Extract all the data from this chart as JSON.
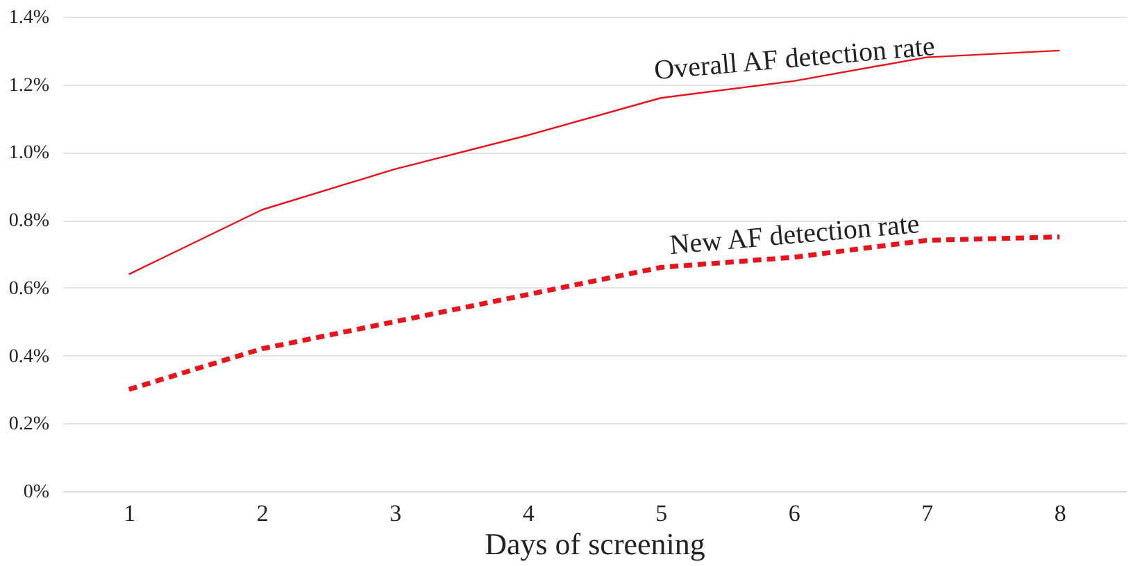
{
  "chart_data": {
    "type": "line",
    "xlabel": "Days of screening",
    "categories": [
      "1",
      "2",
      "3",
      "4",
      "5",
      "6",
      "7",
      "8"
    ],
    "series": [
      {
        "name": "Overall AF detection rate",
        "color": "#e8141c",
        "line_style": "solid",
        "values": [
          0.64,
          0.83,
          0.95,
          1.05,
          1.16,
          1.21,
          1.28,
          1.3
        ]
      },
      {
        "name": "New AF detection rate",
        "color": "#e8141c",
        "line_style": "dashed",
        "values": [
          0.3,
          0.42,
          0.5,
          0.58,
          0.66,
          0.69,
          0.74,
          0.75
        ]
      }
    ],
    "ylim": [
      0,
      1.4
    ],
    "yticks": [
      {
        "value": 0,
        "label": "0%"
      },
      {
        "value": 0.2,
        "label": "0.2%"
      },
      {
        "value": 0.4,
        "label": "0.4%"
      },
      {
        "value": 0.6,
        "label": "0.6%"
      },
      {
        "value": 0.8,
        "label": "0.8%"
      },
      {
        "value": 1.0,
        "label": "1.0%"
      },
      {
        "value": 1.2,
        "label": "1.2%"
      },
      {
        "value": 1.4,
        "label": "1.4%"
      }
    ],
    "grid": "y"
  }
}
